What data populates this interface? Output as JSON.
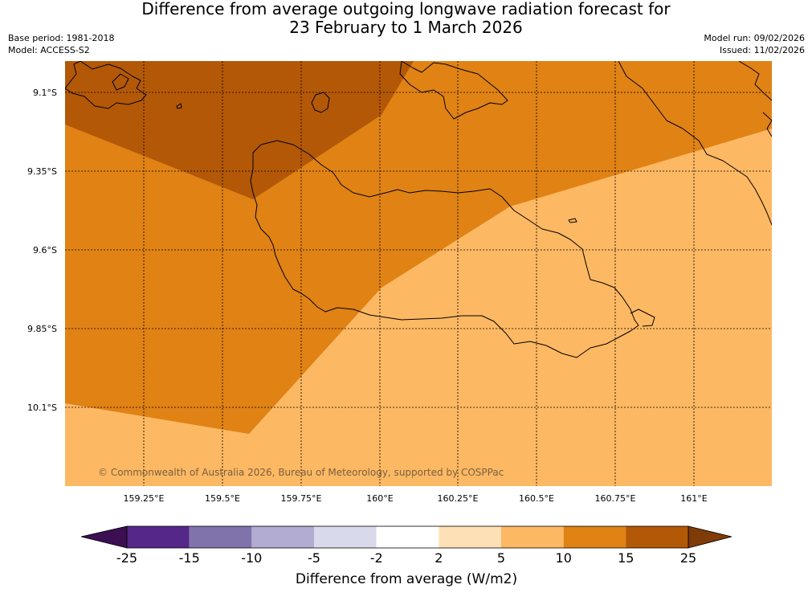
{
  "header": {
    "title_line1": "Difference from average outgoing longwave radiation forecast for",
    "title_line2": "23 February to 1 March 2026",
    "base_period": "Base period: 1981-2018",
    "model": "Model: ACCESS-S2",
    "model_run": "Model run: 09/02/2026",
    "issued": "Issued: 11/02/2026"
  },
  "map": {
    "copyright": "© Commonwealth of Australia 2026, Bureau of Meteorology, supported by COSPPac",
    "lat_labels": [
      "9.1°S",
      "9.35°S",
      "9.6°S",
      "9.85°S",
      "10.1°S"
    ],
    "lon_labels": [
      "159.25°E",
      "159.5°E",
      "159.75°E",
      "160°E",
      "160.25°E",
      "160.5°E",
      "160.75°E",
      "161°E"
    ]
  },
  "legend": {
    "label": "Difference from average (W/m2)",
    "ticks": [
      "-25",
      "-15",
      "-10",
      "-5",
      "-2",
      "2",
      "5",
      "10",
      "15",
      "25"
    ],
    "colors": [
      "#3b0f52",
      "#542788",
      "#8073ac",
      "#b2abd2",
      "#d8daeb",
      "#ffffff",
      "#fee0b6",
      "#fdb863",
      "#e08214",
      "#b35806",
      "#7f3b08"
    ]
  }
}
